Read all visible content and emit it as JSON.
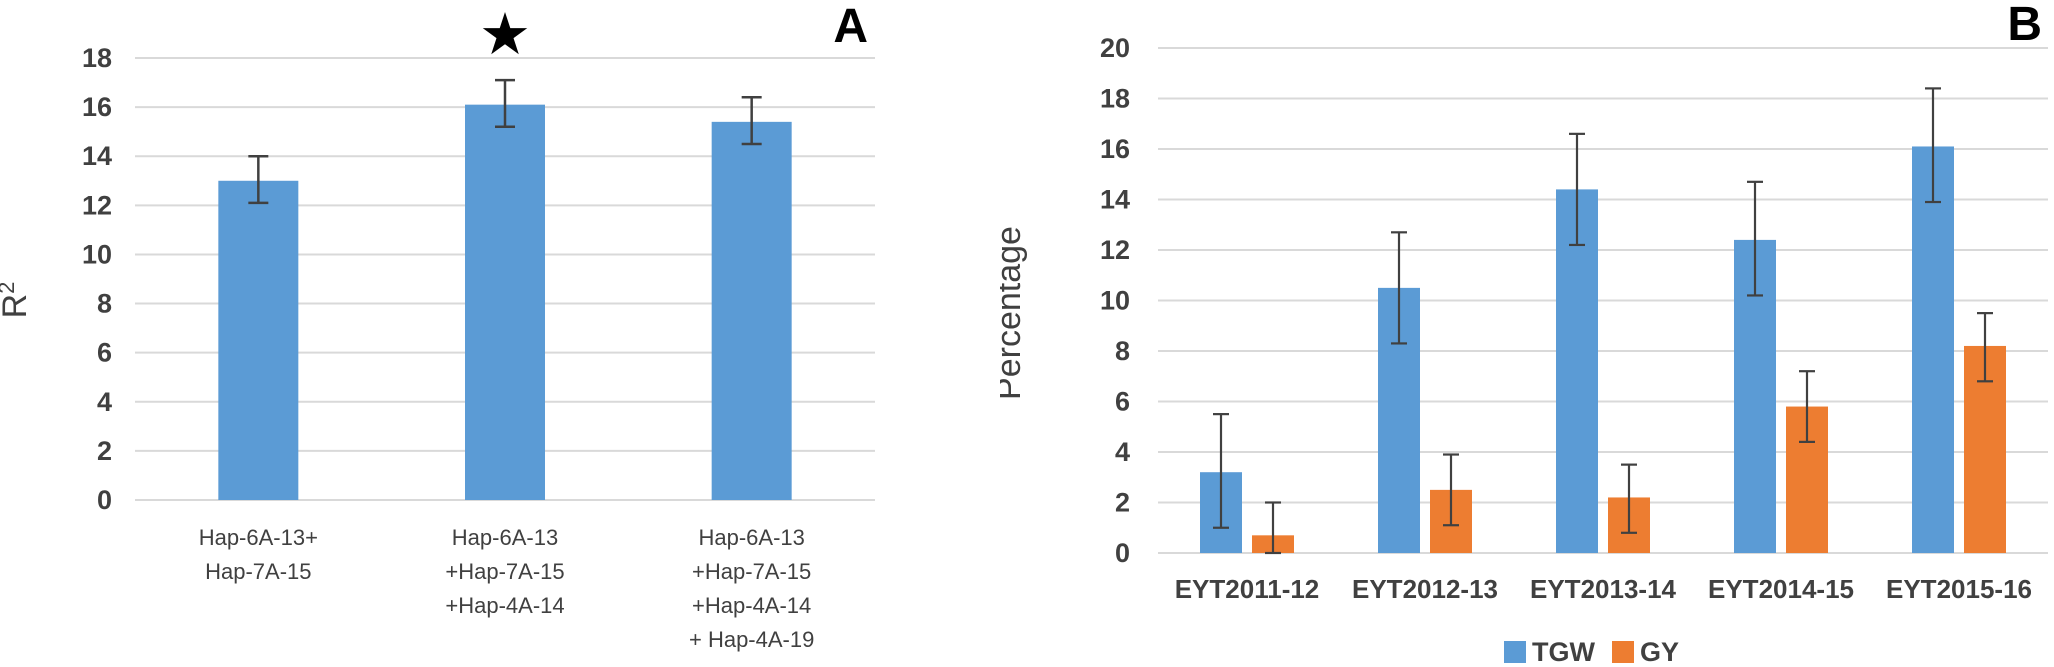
{
  "figure": {
    "background": "#ffffff",
    "colors": {
      "bar_blue": "#5B9BD5",
      "bar_orange": "#ED7D31",
      "gridline": "#D9D9D9",
      "axis_text": "#404040",
      "error_bar": "#404040",
      "annotation": "#000000"
    }
  },
  "chart_data": [
    {
      "id": "chart-a",
      "type": "bar",
      "panel_label": "A",
      "ylabel": "R",
      "ylabel_sup": "2",
      "ylim": [
        0,
        18
      ],
      "ytick_step": 2,
      "grid": true,
      "legend": null,
      "annotation": {
        "symbol": "★",
        "category_index": 1,
        "meaning": "significant"
      },
      "categories": [
        {
          "lines": [
            "Hap-6A-13+",
            "Hap-7A-15"
          ]
        },
        {
          "lines": [
            "Hap-6A-13",
            "+Hap-7A-15",
            "+Hap-4A-14"
          ]
        },
        {
          "lines": [
            "Hap-6A-13",
            "+Hap-7A-15",
            "+Hap-4A-14",
            "+ Hap-4A-19"
          ]
        }
      ],
      "series": [
        {
          "name": "R2",
          "color": "#5B9BD5",
          "values": [
            13.0,
            16.1,
            15.4
          ],
          "error_low": [
            12.1,
            15.2,
            14.5
          ],
          "error_high": [
            14.0,
            17.1,
            16.4
          ]
        }
      ]
    },
    {
      "id": "chart-b",
      "type": "bar",
      "panel_label": "B",
      "ylabel": "Percentage",
      "ylabel_sup": "",
      "ylim": [
        0,
        20
      ],
      "ytick_step": 2,
      "grid": true,
      "legend": {
        "position": "bottom",
        "entries": [
          "TGW",
          "GY"
        ]
      },
      "annotation": null,
      "categories": [
        {
          "lines": [
            "EYT2011-12"
          ]
        },
        {
          "lines": [
            "EYT2012-13"
          ]
        },
        {
          "lines": [
            "EYT2013-14"
          ]
        },
        {
          "lines": [
            "EYT2014-15"
          ]
        },
        {
          "lines": [
            "EYT2015-16"
          ]
        }
      ],
      "series": [
        {
          "name": "TGW",
          "color": "#5B9BD5",
          "values": [
            3.2,
            10.5,
            14.4,
            12.4,
            16.1
          ],
          "error_low": [
            1.0,
            8.3,
            12.2,
            10.2,
            13.9
          ],
          "error_high": [
            5.5,
            12.7,
            16.6,
            14.7,
            18.4
          ]
        },
        {
          "name": "GY",
          "color": "#ED7D31",
          "values": [
            0.7,
            2.5,
            2.2,
            5.8,
            8.2
          ],
          "error_low": [
            0.0,
            1.1,
            0.8,
            4.4,
            6.8
          ],
          "error_high": [
            2.0,
            3.9,
            3.5,
            7.2,
            9.5
          ]
        }
      ]
    }
  ]
}
